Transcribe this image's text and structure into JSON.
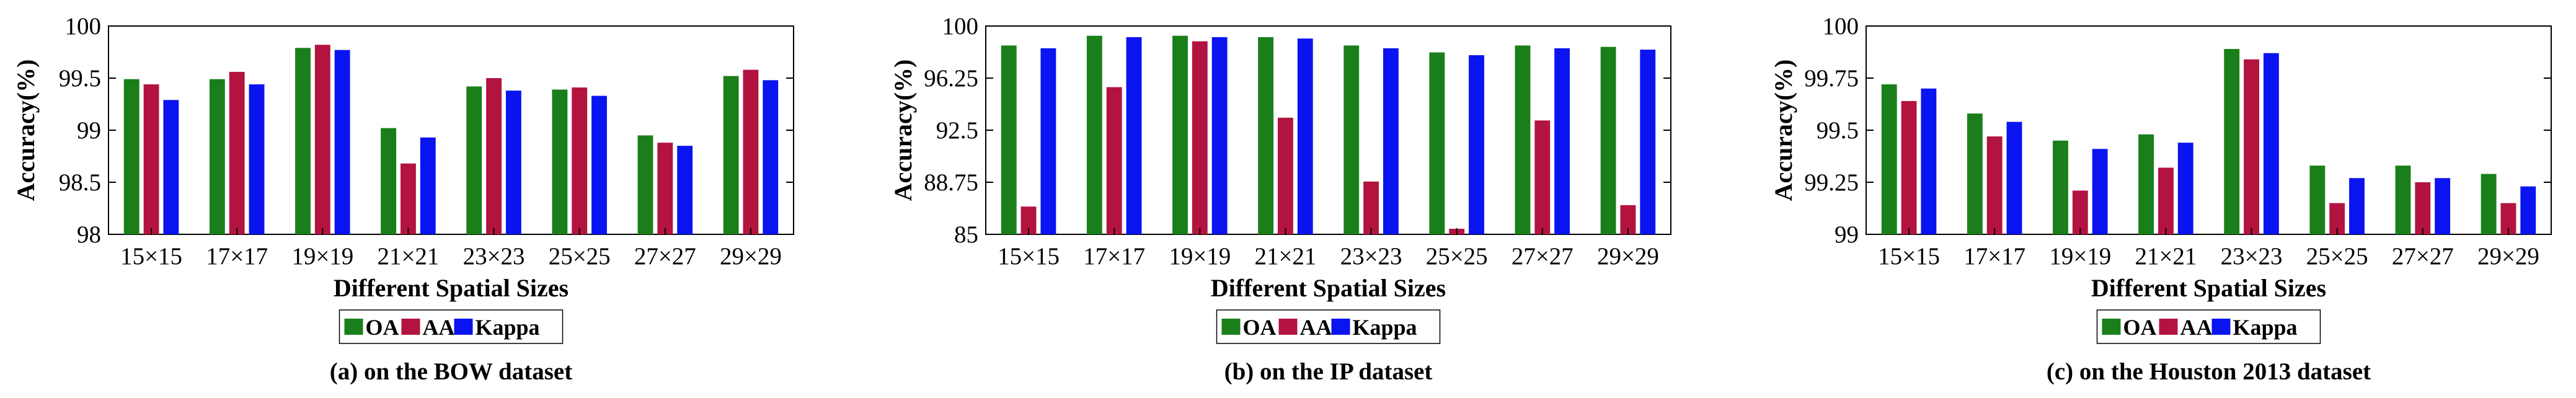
{
  "figure": {
    "panels": [
      {
        "caption": "(a) on the BOW dataset"
      },
      {
        "caption": "(b) on the IP dataset"
      },
      {
        "caption": "(c) on the Houston 2013 dataset"
      }
    ]
  },
  "colors": {
    "OA": "#1a7f1a",
    "AA": "#b3133f",
    "Kappa": "#0a14f0"
  },
  "chart_data": [
    {
      "type": "bar",
      "title": "",
      "caption": "(a) on the BOW dataset",
      "xlabel": "Different Spatial Sizes",
      "ylabel": "Accuracy(%)",
      "ylim": [
        98,
        100
      ],
      "yticks": [
        98,
        98.5,
        99,
        99.5,
        100
      ],
      "ytick_labels": [
        "98",
        "98.5",
        "99",
        "99.5",
        "100"
      ],
      "grid": false,
      "legend_position": "bottom",
      "categories": [
        "15×15",
        "17×17",
        "19×19",
        "21×21",
        "23×23",
        "25×25",
        "27×27",
        "29×29"
      ],
      "series": [
        {
          "name": "OA",
          "values": [
            99.49,
            99.49,
            99.79,
            99.02,
            99.42,
            99.39,
            98.95,
            99.52
          ]
        },
        {
          "name": "AA",
          "values": [
            99.44,
            99.56,
            99.82,
            98.68,
            99.5,
            99.41,
            98.88,
            99.58
          ]
        },
        {
          "name": "Kappa",
          "values": [
            99.29,
            99.44,
            99.77,
            98.93,
            99.38,
            99.33,
            98.85,
            99.48
          ]
        }
      ]
    },
    {
      "type": "bar",
      "title": "",
      "caption": "(b) on the IP dataset",
      "xlabel": "Different Spatial Sizes",
      "ylabel": "Accuracy(%)",
      "ylim": [
        85,
        100
      ],
      "yticks": [
        85,
        88.75,
        92.5,
        96.25,
        100
      ],
      "ytick_labels": [
        "85",
        "88.75",
        "92.5",
        "96.25",
        "100"
      ],
      "grid": false,
      "legend_position": "bottom",
      "categories": [
        "15×15",
        "17×17",
        "19×19",
        "21×21",
        "23×23",
        "25×25",
        "27×27",
        "29×29"
      ],
      "series": [
        {
          "name": "OA",
          "values": [
            98.6,
            99.3,
            99.3,
            99.2,
            98.6,
            98.1,
            98.6,
            98.5
          ]
        },
        {
          "name": "AA",
          "values": [
            87.0,
            95.6,
            98.9,
            93.4,
            88.8,
            85.4,
            93.2,
            87.1
          ]
        },
        {
          "name": "Kappa",
          "values": [
            98.4,
            99.2,
            99.2,
            99.1,
            98.4,
            97.9,
            98.4,
            98.3
          ]
        }
      ]
    },
    {
      "type": "bar",
      "title": "",
      "caption": "(c) on the Houston 2013 dataset",
      "xlabel": "Different Spatial Sizes",
      "ylabel": "Accuracy(%)",
      "ylim": [
        99,
        100
      ],
      "yticks": [
        99,
        99.25,
        99.5,
        99.75,
        100
      ],
      "ytick_labels": [
        "99",
        "99.25",
        "99.5",
        "99.75",
        "100"
      ],
      "grid": false,
      "legend_position": "bottom",
      "categories": [
        "15×15",
        "17×17",
        "19×19",
        "21×21",
        "23×23",
        "25×25",
        "27×27",
        "29×29"
      ],
      "series": [
        {
          "name": "OA",
          "values": [
            99.72,
            99.58,
            99.45,
            99.48,
            99.89,
            99.33,
            99.33,
            99.29
          ]
        },
        {
          "name": "AA",
          "values": [
            99.64,
            99.47,
            99.21,
            99.32,
            99.84,
            99.15,
            99.25,
            99.15
          ]
        },
        {
          "name": "Kappa",
          "values": [
            99.7,
            99.54,
            99.41,
            99.44,
            99.87,
            99.27,
            99.27,
            99.23
          ]
        }
      ]
    }
  ]
}
